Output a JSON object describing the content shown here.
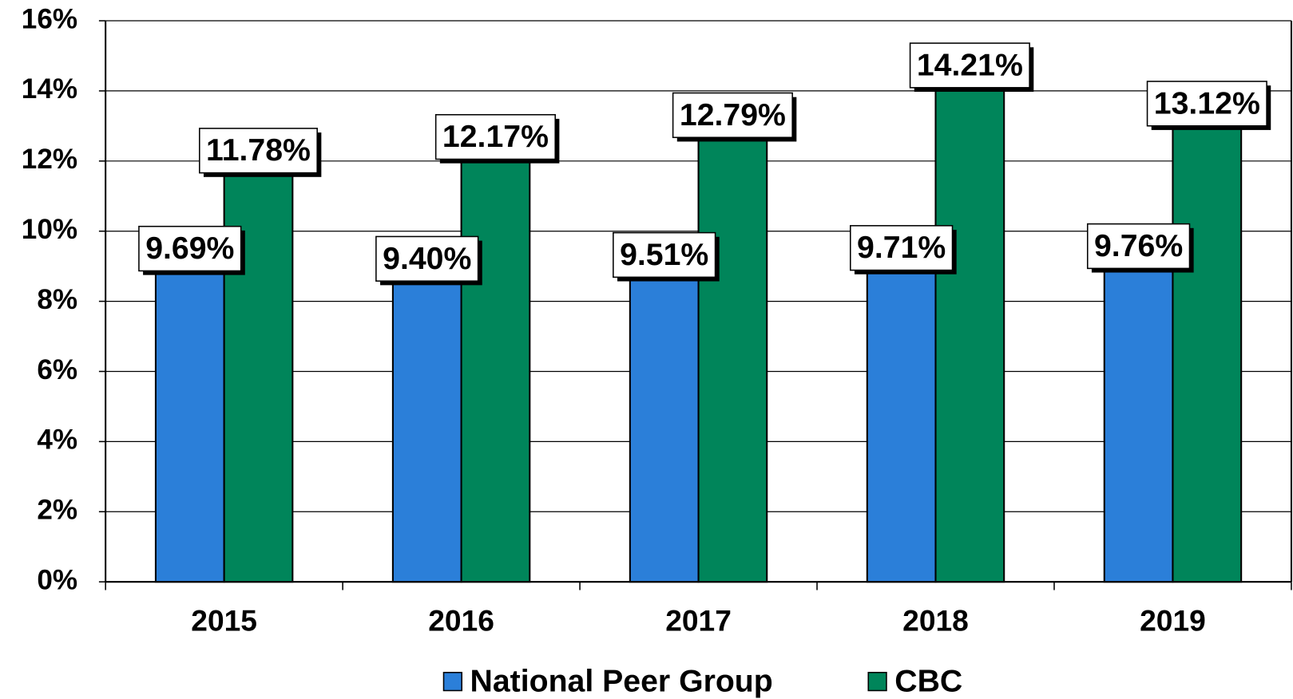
{
  "chart_data": {
    "type": "bar",
    "categories": [
      "2015",
      "2016",
      "2017",
      "2018",
      "2019"
    ],
    "series": [
      {
        "name": "National Peer Group",
        "color": "#2b7fd9",
        "values": [
          9.69,
          9.4,
          9.51,
          9.71,
          9.76
        ],
        "value_labels": [
          "9.69%",
          "9.40%",
          "9.51%",
          "9.71%",
          "9.76%"
        ]
      },
      {
        "name": "CBC",
        "color": "#00855a",
        "values": [
          11.78,
          12.17,
          12.79,
          14.21,
          13.12
        ],
        "value_labels": [
          "11.78%",
          "12.17%",
          "12.79%",
          "14.21%",
          "13.12%"
        ]
      }
    ],
    "ylim": [
      0,
      16
    ],
    "yticks": [
      {
        "value": 0,
        "label": "0%"
      },
      {
        "value": 2,
        "label": "2%"
      },
      {
        "value": 4,
        "label": "4%"
      },
      {
        "value": 6,
        "label": "6%"
      },
      {
        "value": 8,
        "label": "8%"
      },
      {
        "value": 10,
        "label": "10%"
      },
      {
        "value": 12,
        "label": "12%"
      },
      {
        "value": 14,
        "label": "14%"
      },
      {
        "value": 16,
        "label": "16%"
      }
    ],
    "grid": true,
    "legend": "bottom"
  }
}
